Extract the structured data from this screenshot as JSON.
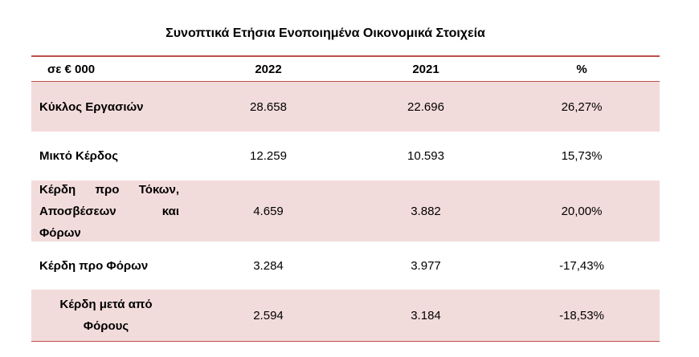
{
  "title": "Συνοπτικά Ετήσια Ενοποιημένα Οικονομικά Στοιχεία",
  "header": {
    "unit": "σε € 000",
    "col_2022": "2022",
    "col_2021": "2021",
    "col_pct": "%"
  },
  "rows": [
    {
      "label": "Κύκλος Εργασιών",
      "v2022": "28.658",
      "v2021": "22.696",
      "pct": "26,27%"
    },
    {
      "label": "Μικτό Κέρδος",
      "v2022": "12.259",
      "v2021": "10.593",
      "pct": "15,73%"
    },
    {
      "label_lines": [
        "Κέρδη προ Τόκων,",
        "Αποσβέσεων και",
        "Φόρων"
      ],
      "v2022": "4.659",
      "v2021": "3.882",
      "pct": "20,00%"
    },
    {
      "label": "Κέρδη προ Φόρων",
      "v2022": "3.284",
      "v2021": "3.977",
      "pct": "-17,43%"
    },
    {
      "label_lines": [
        "Κέρδη μετά από",
        "Φόρους"
      ],
      "v2022": "2.594",
      "v2021": "3.184",
      "pct": "-18,53%"
    }
  ],
  "colors": {
    "rule": "#c0504d",
    "shade": "#f2dcdb"
  }
}
